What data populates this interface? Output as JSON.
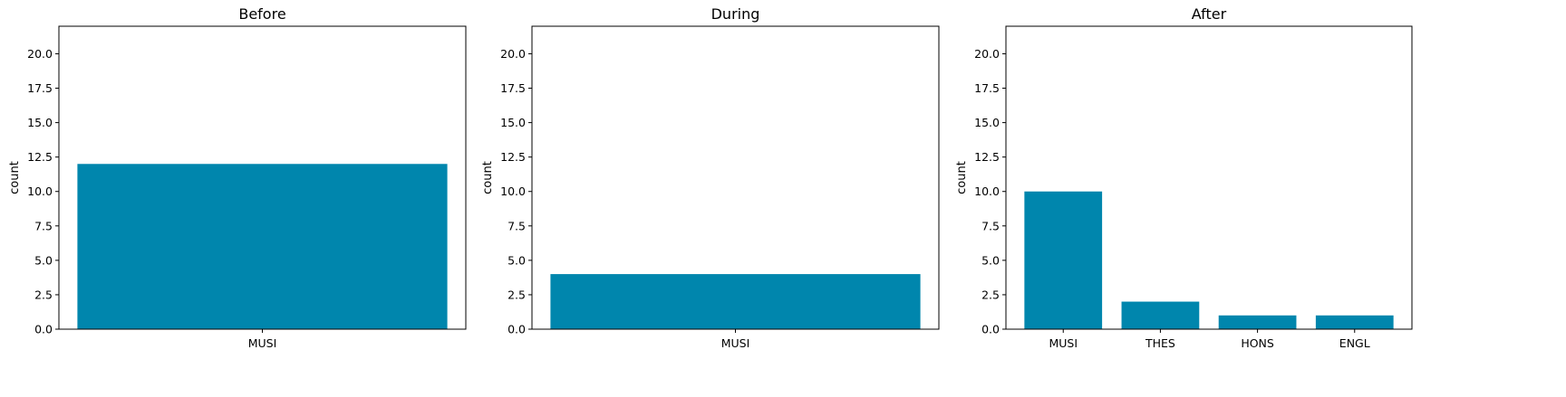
{
  "chart_data": [
    {
      "type": "bar",
      "title": "Before",
      "xlabel": "",
      "ylabel": "count",
      "categories": [
        "MUSI"
      ],
      "values": [
        12
      ],
      "ylim": [
        0,
        22
      ],
      "yticks": [
        0.0,
        2.5,
        5.0,
        7.5,
        10.0,
        12.5,
        15.0,
        17.5,
        20.0
      ],
      "grid": false,
      "bar_color": "#0086ad"
    },
    {
      "type": "bar",
      "title": "During",
      "xlabel": "",
      "ylabel": "count",
      "categories": [
        "MUSI"
      ],
      "values": [
        4
      ],
      "ylim": [
        0,
        22
      ],
      "yticks": [
        0.0,
        2.5,
        5.0,
        7.5,
        10.0,
        12.5,
        15.0,
        17.5,
        20.0
      ],
      "grid": false,
      "bar_color": "#0086ad"
    },
    {
      "type": "bar",
      "title": "After",
      "xlabel": "",
      "ylabel": "count",
      "categories": [
        "MUSI",
        "THES",
        "HONS",
        "ENGL"
      ],
      "values": [
        10,
        2,
        1,
        1
      ],
      "ylim": [
        0,
        22
      ],
      "yticks": [
        0.0,
        2.5,
        5.0,
        7.5,
        10.0,
        12.5,
        15.0,
        17.5,
        20.0
      ],
      "grid": false,
      "bar_color": "#0086ad"
    }
  ]
}
